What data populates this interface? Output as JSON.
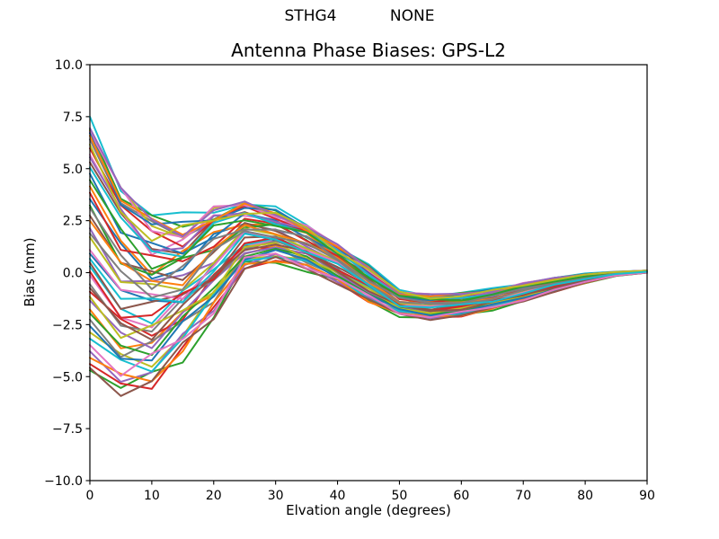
{
  "figure": {
    "suptitle": "STHG4           NONE",
    "title": "Antenna Phase Biases: GPS-L2",
    "xlabel": "Elvation angle (degrees)",
    "ylabel": "Bias (mm)"
  },
  "chart_data": {
    "type": "line",
    "suptitle": "STHG4           NONE",
    "title": "Antenna Phase Biases: GPS-L2",
    "xlabel": "Elvation angle (degrees)",
    "ylabel": "Bias (mm)",
    "xlim": [
      0,
      90
    ],
    "ylim": [
      -10,
      10
    ],
    "xticks": [
      0,
      10,
      20,
      30,
      40,
      50,
      60,
      70,
      80,
      90
    ],
    "xtick_labels": [
      "0",
      "10",
      "20",
      "30",
      "40",
      "50",
      "60",
      "70",
      "80",
      "90"
    ],
    "yticks": [
      -10.0,
      -7.5,
      -5.0,
      -2.5,
      0.0,
      2.5,
      5.0,
      7.5,
      10.0
    ],
    "ytick_labels": [
      "−10.0",
      "−7.5",
      "−5.0",
      "−2.5",
      "0.0",
      "2.5",
      "5.0",
      "7.5",
      "10.0"
    ],
    "grid": false,
    "legend": null,
    "n_series": 50,
    "line_width": 2,
    "x": [
      0,
      5,
      10,
      15,
      20,
      25,
      30,
      35,
      40,
      45,
      50,
      55,
      60,
      65,
      70,
      75,
      80,
      85,
      90
    ],
    "envelope_top": [
      7.5,
      4.3,
      2.6,
      2.5,
      3.2,
      3.35,
      3.0,
      2.35,
      1.3,
      0.3,
      -0.85,
      -1.05,
      -1.0,
      -0.8,
      -0.5,
      -0.25,
      -0.05,
      0.05,
      0.1
    ],
    "envelope_bottom": [
      -4.7,
      -5.7,
      -5.2,
      -3.9,
      -2.1,
      0.3,
      0.55,
      0.15,
      -0.45,
      -1.35,
      -2.05,
      -2.2,
      -2.05,
      -1.75,
      -1.35,
      -0.9,
      -0.5,
      -0.15,
      0.0
    ],
    "band_center": [
      1.4,
      -0.7,
      -1.3,
      -0.7,
      0.55,
      1.83,
      1.78,
      1.25,
      0.43,
      -0.53,
      -1.45,
      -1.63,
      -1.53,
      -1.28,
      -0.93,
      -0.58,
      -0.28,
      -0.05,
      0.05
    ],
    "band_halfwidth": [
      6.1,
      5.0,
      3.9,
      3.2,
      2.65,
      1.52,
      1.22,
      1.1,
      0.88,
      0.83,
      0.6,
      0.58,
      0.53,
      0.48,
      0.43,
      0.33,
      0.22,
      0.1,
      0.05
    ],
    "jitter": {
      "amp": 0.15,
      "freq": 1.9,
      "mask": [
        0,
        0.5,
        1,
        1,
        1,
        1,
        1,
        1,
        1,
        1,
        1,
        1,
        1,
        1,
        1,
        0.8,
        0.6,
        0.4,
        0
      ]
    },
    "palette": [
      "#1f77b4",
      "#ff7f0e",
      "#2ca02c",
      "#d62728",
      "#9467bd",
      "#8c564b",
      "#e377c2",
      "#7f7f7f",
      "#bcbd22",
      "#17becf"
    ],
    "series": [
      {
        "color": 0,
        "a": 0.35,
        "phase": 0.0
      },
      {
        "color": 1,
        "a": -0.52,
        "phase": 2.4
      },
      {
        "color": 2,
        "a": -1.0,
        "phase": 4.8
      },
      {
        "color": 3,
        "a": -0.95,
        "phase": 0.92
      },
      {
        "color": 4,
        "a": 0.12,
        "phase": 3.32
      },
      {
        "color": 5,
        "a": 0.64,
        "phase": 5.72
      },
      {
        "color": 6,
        "a": -0.25,
        "phase": 1.83
      },
      {
        "color": 7,
        "a": 0.82,
        "phase": 4.23
      },
      {
        "color": 8,
        "a": -0.7,
        "phase": 0.35
      },
      {
        "color": 9,
        "a": 1.0,
        "phase": 2.75
      },
      {
        "color": 0,
        "a": -0.08,
        "phase": 5.15
      },
      {
        "color": 1,
        "a": 0.45,
        "phase": 1.27
      },
      {
        "color": 2,
        "a": 0.9,
        "phase": 3.67
      },
      {
        "color": 3,
        "a": -0.38,
        "phase": 6.07
      },
      {
        "color": 4,
        "a": -0.85,
        "phase": 2.18
      },
      {
        "color": 5,
        "a": 0.22,
        "phase": 4.58
      },
      {
        "color": 6,
        "a": 0.7,
        "phase": 0.7
      },
      {
        "color": 7,
        "a": -0.6,
        "phase": 3.1
      },
      {
        "color": 8,
        "a": 0.89,
        "phase": 5.5
      },
      {
        "color": 9,
        "a": -0.18,
        "phase": 1.62
      },
      {
        "color": 0,
        "a": 0.55,
        "phase": 4.02
      },
      {
        "color": 1,
        "a": -0.9,
        "phase": 0.13
      },
      {
        "color": 2,
        "a": 0.3,
        "phase": 2.53
      },
      {
        "color": 3,
        "a": 0.75,
        "phase": 4.93
      },
      {
        "color": 4,
        "a": -0.45,
        "phase": 1.05
      },
      {
        "color": 5,
        "a": -0.15,
        "phase": 3.45
      },
      {
        "color": 6,
        "a": 0.88,
        "phase": 5.85
      },
      {
        "color": 7,
        "a": -0.32,
        "phase": 1.97
      },
      {
        "color": 8,
        "a": 0.05,
        "phase": 4.37
      },
      {
        "color": 9,
        "a": -0.75,
        "phase": 0.48
      },
      {
        "color": 0,
        "a": 0.87,
        "phase": 2.88
      },
      {
        "color": 1,
        "a": 0.18,
        "phase": 5.28
      },
      {
        "color": 2,
        "a": -0.55,
        "phase": 1.4
      },
      {
        "color": 3,
        "a": 0.4,
        "phase": 3.8
      },
      {
        "color": 4,
        "a": 0.68,
        "phase": 6.2
      },
      {
        "color": 5,
        "a": -0.98,
        "phase": 2.32
      },
      {
        "color": 6,
        "a": -0.05,
        "phase": 4.72
      },
      {
        "color": 7,
        "a": 0.28,
        "phase": 0.84
      },
      {
        "color": 8,
        "a": -0.42,
        "phase": 3.24
      },
      {
        "color": 9,
        "a": 0.6,
        "phase": 5.64
      },
      {
        "color": 0,
        "a": -0.65,
        "phase": 1.75
      },
      {
        "color": 1,
        "a": 0.85,
        "phase": 4.15
      },
      {
        "color": 2,
        "a": 0.5,
        "phase": 0.27
      },
      {
        "color": 3,
        "a": -0.22,
        "phase": 2.67
      },
      {
        "color": 4,
        "a": 0.91,
        "phase": 5.07
      },
      {
        "color": 5,
        "a": -0.35,
        "phase": 1.19
      },
      {
        "color": 6,
        "a": -0.8,
        "phase": 3.59
      },
      {
        "color": 7,
        "a": 0.08,
        "phase": 5.99
      },
      {
        "color": 8,
        "a": 0.78,
        "phase": 2.1
      },
      {
        "color": 9,
        "a": -0.12,
        "phase": 4.5
      }
    ]
  }
}
